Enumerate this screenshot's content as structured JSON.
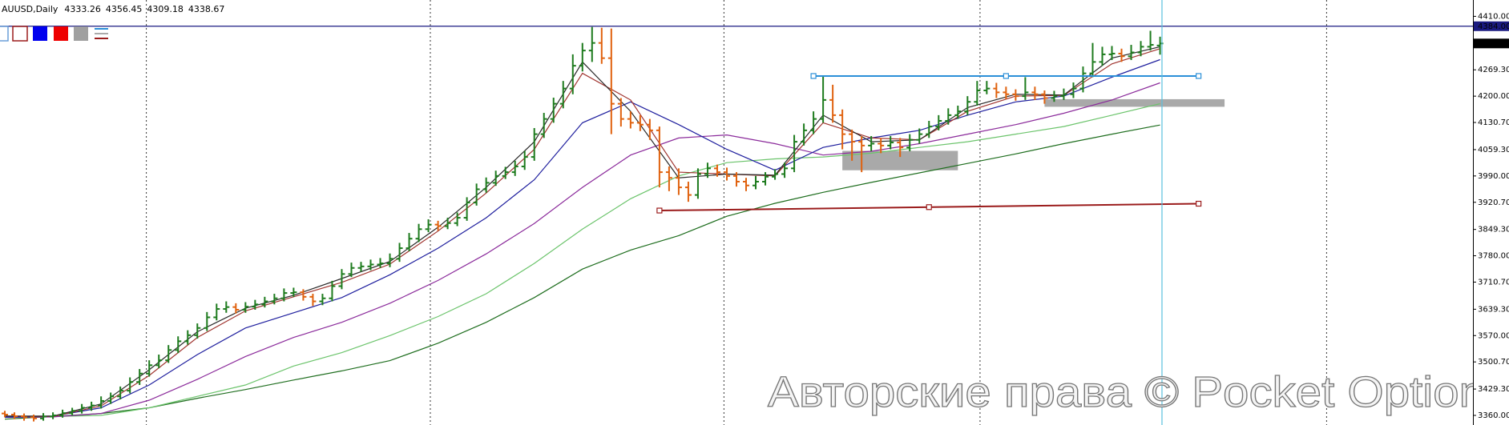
{
  "chart_data": {
    "type": "ohlc",
    "title": "AUUSD,Daily",
    "last_bar": [
      4333.26,
      4356.45,
      4309.18,
      4338.67
    ],
    "up_color": "#1e7b1e",
    "down_color": "#e0620f",
    "xlim": [
      -0.5,
      152.5
    ],
    "ylim": [
      3334.7,
      4453
    ],
    "yticks": [
      {
        "value": 4410,
        "label": "4410.00"
      },
      {
        "value": 4269.3,
        "label": "4269.30"
      },
      {
        "value": 4200,
        "label": "4200.00"
      },
      {
        "value": 4130.7,
        "label": "4130.70"
      },
      {
        "value": 4059.3,
        "label": "4059.30"
      },
      {
        "value": 3990,
        "label": "3990.00"
      },
      {
        "value": 3920.7,
        "label": "3920.70"
      },
      {
        "value": 3849.3,
        "label": "3849.30"
      },
      {
        "value": 3780,
        "label": "3780.00"
      },
      {
        "value": 3710.7,
        "label": "3710.70"
      },
      {
        "value": 3639.3,
        "label": "3639.30"
      },
      {
        "value": 3570,
        "label": "3570.00"
      },
      {
        "value": 3500.7,
        "label": "3500.70"
      },
      {
        "value": 3429.3,
        "label": "3429.30"
      },
      {
        "value": 3360,
        "label": "3360.00"
      }
    ],
    "open": [
      3365,
      3362,
      3358,
      3355,
      3352,
      3357,
      3360,
      3366,
      3372,
      3380,
      3386,
      3398,
      3410,
      3425,
      3448,
      3470,
      3492,
      3505,
      3532,
      3555,
      3571,
      3590,
      3618,
      3640,
      3645,
      3638,
      3646,
      3652,
      3660,
      3668,
      3682,
      3684,
      3672,
      3660,
      3668,
      3700,
      3732,
      3748,
      3752,
      3757,
      3760,
      3772,
      3800,
      3825,
      3850,
      3862,
      3858,
      3866,
      3880,
      3920,
      3955,
      3972,
      3990,
      4000,
      4015,
      4040,
      4100,
      4140,
      4180,
      4220,
      4280,
      4320,
      4340,
      4300,
      4180,
      4140,
      4130,
      4125,
      4110,
      4000,
      3985,
      3960,
      3940,
      3995,
      4010,
      4000,
      3990,
      3975,
      3965,
      3975,
      3988,
      3995,
      4010,
      4080,
      4110,
      4140,
      4190,
      4150,
      4100,
      4080,
      4070,
      4075,
      4070,
      4078,
      4065,
      4085,
      4100,
      4120,
      4135,
      4150,
      4160,
      4185,
      4215,
      4220,
      4210,
      4205,
      4200,
      4210,
      4205,
      4195,
      4200,
      4205,
      4220,
      4260,
      4290,
      4310,
      4312,
      4305,
      4315,
      4330,
      4333.26
    ],
    "high": [
      3372,
      3368,
      3365,
      3362,
      3366,
      3368,
      3375,
      3380,
      3390,
      3396,
      3410,
      3420,
      3436,
      3460,
      3482,
      3505,
      3520,
      3545,
      3568,
      3584,
      3602,
      3632,
      3654,
      3660,
      3655,
      3658,
      3664,
      3672,
      3680,
      3694,
      3696,
      3692,
      3680,
      3680,
      3714,
      3745,
      3762,
      3764,
      3770,
      3774,
      3786,
      3814,
      3840,
      3864,
      3876,
      3872,
      3880,
      3894,
      3934,
      3970,
      3986,
      4004,
      4014,
      4030,
      4056,
      4116,
      4156,
      4196,
      4240,
      4310,
      4340,
      4382,
      4380,
      4378,
      4195,
      4160,
      4150,
      4140,
      4120,
      4015,
      4010,
      3975,
      4010,
      4025,
      4020,
      4012,
      4000,
      3985,
      3990,
      4000,
      4008,
      4025,
      4098,
      4128,
      4160,
      4251,
      4230,
      4165,
      4112,
      4095,
      4095,
      4090,
      4095,
      4090,
      4100,
      4115,
      4135,
      4150,
      4168,
      4175,
      4200,
      4240,
      4240,
      4235,
      4225,
      4218,
      4250,
      4225,
      4215,
      4214,
      4220,
      4236,
      4278,
      4340,
      4330,
      4332,
      4325,
      4335,
      4345,
      4372,
      4356.45
    ],
    "low": [
      3355,
      3350,
      3346,
      3344,
      3346,
      3350,
      3354,
      3360,
      3365,
      3372,
      3378,
      3390,
      3402,
      3418,
      3440,
      3462,
      3484,
      3498,
      3524,
      3546,
      3562,
      3582,
      3610,
      3630,
      3628,
      3630,
      3638,
      3644,
      3652,
      3660,
      3672,
      3662,
      3648,
      3650,
      3660,
      3692,
      3724,
      3738,
      3742,
      3748,
      3750,
      3764,
      3792,
      3816,
      3842,
      3846,
      3850,
      3858,
      3872,
      3912,
      3946,
      3964,
      3982,
      3990,
      4006,
      4030,
      4090,
      4130,
      4168,
      4205,
      4265,
      4290,
      4285,
      4100,
      4120,
      4115,
      4108,
      4085,
      3960,
      3950,
      3940,
      3922,
      3930,
      3985,
      3988,
      3978,
      3962,
      3950,
      3955,
      3965,
      3980,
      3985,
      4000,
      4070,
      4100,
      4130,
      4130,
      4060,
      4030,
      4000,
      4055,
      4050,
      4060,
      4040,
      4055,
      4075,
      4090,
      4110,
      4125,
      4140,
      4150,
      4175,
      4205,
      4195,
      4192,
      4188,
      4190,
      4190,
      4180,
      4185,
      4190,
      4195,
      4210,
      4250,
      4280,
      4295,
      4290,
      4295,
      4305,
      4320,
      4309.18
    ],
    "close": [
      3362,
      3358,
      3355,
      3352,
      3357,
      3360,
      3366,
      3372,
      3380,
      3386,
      3398,
      3410,
      3425,
      3448,
      3470,
      3492,
      3505,
      3532,
      3555,
      3571,
      3590,
      3618,
      3640,
      3645,
      3638,
      3646,
      3652,
      3660,
      3668,
      3682,
      3684,
      3672,
      3660,
      3668,
      3700,
      3732,
      3748,
      3752,
      3757,
      3760,
      3772,
      3800,
      3825,
      3850,
      3862,
      3858,
      3866,
      3880,
      3920,
      3955,
      3972,
      3990,
      4000,
      4015,
      4040,
      4100,
      4140,
      4180,
      4220,
      4280,
      4320,
      4340,
      4300,
      4180,
      4140,
      4130,
      4125,
      4110,
      4000,
      3985,
      3960,
      3940,
      3995,
      4010,
      4000,
      3990,
      3975,
      3965,
      3975,
      3988,
      3995,
      4010,
      4080,
      4110,
      4140,
      4190,
      4150,
      4100,
      4080,
      4070,
      4075,
      4070,
      4078,
      4065,
      4085,
      4100,
      4120,
      4135,
      4150,
      4160,
      4185,
      4215,
      4220,
      4210,
      4205,
      4200,
      4210,
      4205,
      4195,
      4200,
      4205,
      4220,
      4260,
      4290,
      4310,
      4312,
      4305,
      4315,
      4330,
      4335,
      4338.67
    ],
    "ma_x": [
      0,
      5,
      10,
      15,
      20,
      25,
      30,
      35,
      40,
      45,
      50,
      55,
      60,
      65,
      70,
      75,
      80,
      85,
      90,
      95,
      100,
      105,
      110,
      115,
      120
    ],
    "ma": [
      {
        "color": "#1f6e1f",
        "values": [
          3350,
          3357,
          3365,
          3380,
          3405,
          3428,
          3453,
          3477,
          3504,
          3550,
          3605,
          3670,
          3745,
          3795,
          3833,
          3884,
          3918,
          3947,
          3973,
          3998,
          4023,
          4048,
          4075,
          4100,
          4124
        ]
      },
      {
        "color": "#6cc46c",
        "values": [
          3357,
          3357,
          3360,
          3380,
          3410,
          3440,
          3490,
          3525,
          3570,
          3620,
          3680,
          3760,
          3850,
          3930,
          3990,
          4025,
          4035,
          4040,
          4050,
          4065,
          4080,
          4100,
          4120,
          4150,
          4180
        ]
      },
      {
        "color": "#8b2b9b",
        "values": [
          3355,
          3356,
          3365,
          3400,
          3455,
          3515,
          3565,
          3605,
          3655,
          3715,
          3785,
          3865,
          3960,
          4045,
          4090,
          4098,
          4075,
          4045,
          4055,
          4075,
          4100,
          4125,
          4155,
          4190,
          4235
        ]
      },
      {
        "color": "#1f1f9e",
        "values": [
          3355,
          3358,
          3380,
          3440,
          3520,
          3590,
          3630,
          3670,
          3730,
          3800,
          3880,
          3980,
          4130,
          4185,
          4125,
          4060,
          4005,
          4065,
          4090,
          4110,
          4150,
          4185,
          4200,
          4250,
          4296
        ]
      },
      {
        "color": "#a0342f",
        "values": [
          3358,
          3357,
          3385,
          3465,
          3565,
          3635,
          3672,
          3710,
          3758,
          3845,
          3945,
          4060,
          4260,
          4190,
          4000,
          3995,
          3990,
          4130,
          4090,
          4085,
          4160,
          4200,
          4202,
          4285,
          4325
        ]
      },
      {
        "color": "#2a2a2a",
        "values": [
          3358,
          3358,
          3390,
          3480,
          3580,
          3642,
          3676,
          3720,
          3765,
          3855,
          3960,
          4080,
          4290,
          4160,
          3985,
          3995,
          3992,
          4150,
          4080,
          4085,
          4170,
          4205,
          4203,
          4300,
          4330
        ]
      }
    ],
    "separators": [
      14.7,
      44.2,
      74.7,
      101.3,
      137.3
    ],
    "zones": [
      {
        "x": [
          87,
          99
        ],
        "values": [
          4005,
          4056
        ],
        "color": "#a9a9a9"
      },
      {
        "x": [
          108,
          126.7
        ],
        "values": [
          4172,
          4192
        ],
        "color": "#a9a9a9"
      }
    ],
    "lines": [
      {
        "color": "#2b8fd8",
        "x": [
          84,
          124
        ],
        "values": [
          4253,
          4253
        ]
      },
      {
        "color": "#9b1c1c",
        "x": [
          68,
          124
        ],
        "values": [
          3899,
          3917
        ]
      }
    ],
    "hline": {
      "value": 4384,
      "label": "4384.00",
      "color": "#1a1a80"
    },
    "vline": {
      "x": 120.2,
      "color": "#5bc0de"
    },
    "watermark": "Авторские права © Pocket Option"
  }
}
